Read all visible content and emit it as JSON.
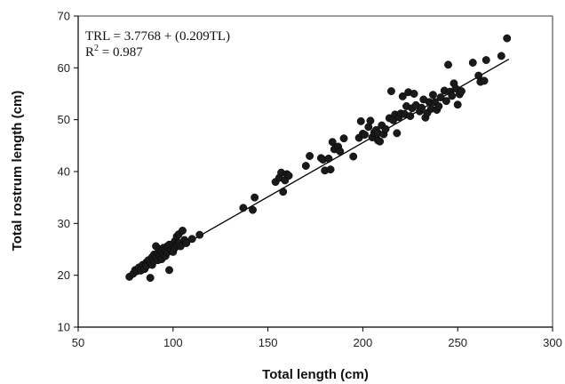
{
  "chart_data": {
    "type": "scatter",
    "xlabel": "Total length (cm)",
    "ylabel": "Total rostrum length (cm)",
    "xlim": [
      50,
      300
    ],
    "ylim": [
      10,
      70
    ],
    "xticks": [
      50,
      100,
      150,
      200,
      250,
      300
    ],
    "yticks": [
      10,
      20,
      30,
      40,
      50,
      60,
      70
    ],
    "grid": false,
    "annotations": {
      "equation": "TRL = 3.7768 + (0.209TL)",
      "r2_prefix": "R",
      "r2_sup": "2",
      "r2_value": " = 0.987"
    },
    "fit": {
      "intercept": 3.7768,
      "slope": 0.209,
      "x_range": [
        77,
        277
      ]
    },
    "colors": {
      "points": "#1a1a1a",
      "line": "#000000",
      "axes": "#000000"
    },
    "points": [
      [
        77,
        19.7
      ],
      [
        79,
        20.3
      ],
      [
        80,
        21
      ],
      [
        81,
        20.8
      ],
      [
        82,
        21.5
      ],
      [
        83,
        20.9
      ],
      [
        84,
        22
      ],
      [
        85,
        21.2
      ],
      [
        86,
        22.5
      ],
      [
        86,
        21.8
      ],
      [
        87,
        22.9
      ],
      [
        88,
        19.5
      ],
      [
        88,
        22.4
      ],
      [
        89,
        23.5
      ],
      [
        89,
        22
      ],
      [
        90,
        24
      ],
      [
        90,
        22.8
      ],
      [
        91,
        25.6
      ],
      [
        91,
        23.4
      ],
      [
        92,
        24.3
      ],
      [
        92,
        22.9
      ],
      [
        93,
        25
      ],
      [
        93,
        23.8
      ],
      [
        94,
        24.6
      ],
      [
        94,
        23.1
      ],
      [
        95,
        25.3
      ],
      [
        95,
        24
      ],
      [
        96,
        24.9
      ],
      [
        96,
        23.7
      ],
      [
        97,
        25.6
      ],
      [
        97,
        24.4
      ],
      [
        98,
        21
      ],
      [
        98,
        25.9
      ],
      [
        99,
        24.8
      ],
      [
        100,
        26
      ],
      [
        100,
        24.5
      ],
      [
        101,
        25.3
      ],
      [
        101,
        26.6
      ],
      [
        102,
        25.8
      ],
      [
        102,
        27.5
      ],
      [
        103,
        26.2
      ],
      [
        103,
        27.9
      ],
      [
        104,
        25.6
      ],
      [
        105,
        28.6
      ],
      [
        106,
        26.8
      ],
      [
        107,
        26.2
      ],
      [
        110,
        27
      ],
      [
        114,
        27.8
      ],
      [
        137,
        33
      ],
      [
        142,
        32.6
      ],
      [
        143,
        35
      ],
      [
        154,
        38
      ],
      [
        156,
        38.8
      ],
      [
        157,
        39.8
      ],
      [
        158,
        36.1
      ],
      [
        159,
        38.3
      ],
      [
        160,
        39.5
      ],
      [
        161,
        39.2
      ],
      [
        170,
        41.1
      ],
      [
        172,
        43
      ],
      [
        178,
        42.6
      ],
      [
        179,
        42.3
      ],
      [
        180,
        40.2
      ],
      [
        182,
        42.5
      ],
      [
        183,
        40.4
      ],
      [
        184,
        45.7
      ],
      [
        185,
        44.3
      ],
      [
        187,
        44.8
      ],
      [
        188,
        43.9
      ],
      [
        190,
        46.4
      ],
      [
        195,
        42.9
      ],
      [
        198,
        46.5
      ],
      [
        199,
        49.7
      ],
      [
        200,
        47.3
      ],
      [
        201,
        47.1
      ],
      [
        203,
        48.6
      ],
      [
        204,
        49.8
      ],
      [
        205,
        46.6
      ],
      [
        206,
        47.5
      ],
      [
        207,
        48
      ],
      [
        208,
        46
      ],
      [
        208,
        47.4
      ],
      [
        209,
        45.8
      ],
      [
        210,
        48.9
      ],
      [
        211,
        47.2
      ],
      [
        212,
        48.2
      ],
      [
        214,
        50.3
      ],
      [
        215,
        55.5
      ],
      [
        216,
        49.9
      ],
      [
        217,
        51
      ],
      [
        218,
        47.4
      ],
      [
        219,
        50.5
      ],
      [
        220,
        51.2
      ],
      [
        221,
        54.5
      ],
      [
        222,
        51.1
      ],
      [
        223,
        52.6
      ],
      [
        224,
        55.3
      ],
      [
        225,
        50.7
      ],
      [
        226,
        52.2
      ],
      [
        227,
        55
      ],
      [
        228,
        52.8
      ],
      [
        230,
        51.6
      ],
      [
        231,
        52.3
      ],
      [
        232,
        53.9
      ],
      [
        233,
        50.4
      ],
      [
        234,
        51.3
      ],
      [
        235,
        53.4
      ],
      [
        236,
        52.1
      ],
      [
        237,
        54.8
      ],
      [
        238,
        53.4
      ],
      [
        239,
        51.9
      ],
      [
        240,
        52.6
      ],
      [
        241,
        54.3
      ],
      [
        243,
        55.6
      ],
      [
        244,
        53.6
      ],
      [
        245,
        60.6
      ],
      [
        246,
        55.4
      ],
      [
        247,
        54.6
      ],
      [
        248,
        57
      ],
      [
        249,
        56
      ],
      [
        250,
        52.9
      ],
      [
        251,
        54.9
      ],
      [
        252,
        55.5
      ],
      [
        258,
        61
      ],
      [
        261,
        58.5
      ],
      [
        262,
        57.3
      ],
      [
        264,
        57.5
      ],
      [
        265,
        61.5
      ],
      [
        273,
        62.3
      ],
      [
        276,
        65.7
      ]
    ]
  }
}
